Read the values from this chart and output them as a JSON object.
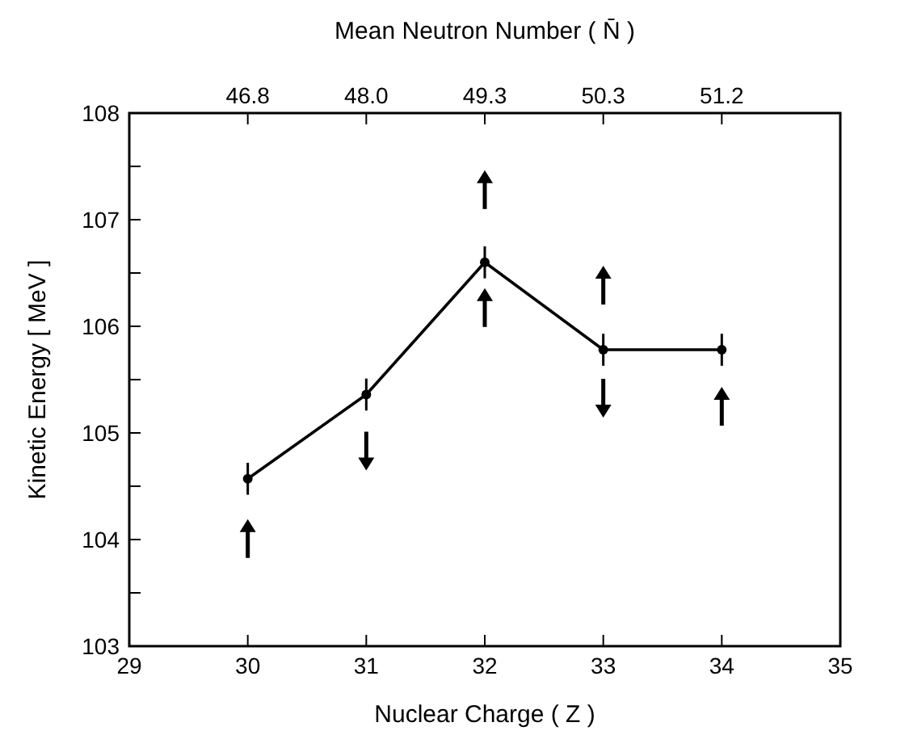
{
  "chart_data": {
    "type": "line",
    "xlabel": "Nuclear Charge ( Z )",
    "ylabel": "Kinetic Energy  [ MeV ]",
    "x2label": "Mean Neutron Number ( N̄ )",
    "x": [
      30,
      31,
      32,
      33,
      34
    ],
    "series": [
      {
        "color": "#000000",
        "values": [
          104.57,
          105.36,
          106.6,
          105.78,
          105.78
        ],
        "errors": [
          0.15,
          0.15,
          0.15,
          0.15,
          0.15
        ]
      }
    ],
    "marker": "circle",
    "line_style": "solid",
    "xlim": [
      29,
      35
    ],
    "xticks": [
      29,
      30,
      31,
      32,
      33,
      34,
      35
    ],
    "annotations": [
      {
        "text": "46.8",
        "x": 30
      },
      {
        "text": "48.0",
        "x": 31
      },
      {
        "text": "49.3",
        "x": 32
      },
      {
        "text": "50.3",
        "x": 33
      },
      {
        "text": "51.2",
        "x": 34
      }
    ],
    "ylim": [
      103,
      108
    ],
    "yticks": [
      103,
      {
        "value": 103.5,
        "label": null
      },
      104,
      {
        "value": 104.5,
        "label": null
      },
      105,
      {
        "value": 105.5,
        "label": null
      },
      106,
      {
        "value": 106.5,
        "label": null
      },
      107,
      {
        "value": 107.5,
        "label": null
      },
      108
    ]
  }
}
